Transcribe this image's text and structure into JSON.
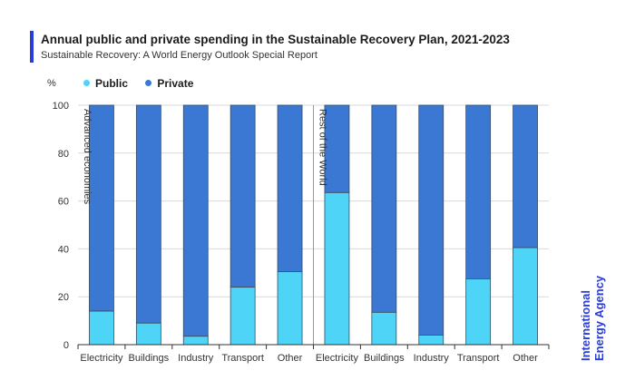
{
  "title": "Annual public and private spending in the Sustainable Recovery Plan, 2021-2023",
  "subtitle": "Sustainable Recovery: A World Energy Outlook Special Report",
  "legend": {
    "public": "Public",
    "private": "Private"
  },
  "logo": {
    "line1": "International",
    "line2": "Energy Agency"
  },
  "colors": {
    "accent": "#2a3cd6",
    "public": "#4dd4f7",
    "private": "#3b78d3",
    "logo": "#2a3cd6",
    "axis": "#333333",
    "grid": "#d9d9d9",
    "outline": "#3a4a5a"
  },
  "chart_data": {
    "type": "bar",
    "stacked": true,
    "title": "Annual public and private spending in the Sustainable Recovery Plan, 2021-2023",
    "ylabel": "%",
    "xlabel": "",
    "ylim": [
      0,
      100
    ],
    "yticks": [
      0,
      20,
      40,
      60,
      80,
      100
    ],
    "groups": [
      {
        "name": "Advanced economies",
        "categories": [
          "Electricity",
          "Buildings",
          "Industry",
          "Transport",
          "Other"
        ],
        "public": [
          14,
          9,
          3.5,
          24,
          30.5
        ],
        "private": [
          86,
          91,
          96.5,
          76,
          69.5
        ]
      },
      {
        "name": "Rest of the World",
        "categories": [
          "Electricity",
          "Buildings",
          "Industry",
          "Transport",
          "Other"
        ],
        "public": [
          63.5,
          13.5,
          4,
          27.5,
          40.5
        ],
        "private": [
          36.5,
          86.5,
          96,
          72.5,
          59.5
        ]
      }
    ],
    "legend": [
      "Public",
      "Private"
    ]
  }
}
